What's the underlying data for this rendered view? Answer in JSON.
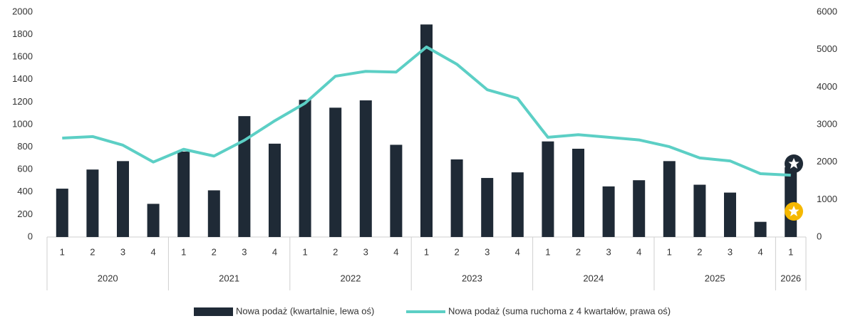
{
  "chart_data": {
    "type": "bar_line",
    "categories": [
      "1",
      "2",
      "3",
      "4",
      "1",
      "2",
      "3",
      "4",
      "1",
      "2",
      "3",
      "4",
      "1",
      "2",
      "3",
      "4",
      "1",
      "2",
      "3",
      "4",
      "1",
      "2",
      "3",
      "4",
      "1"
    ],
    "x_groups": [
      {
        "label": "2020",
        "count": 4
      },
      {
        "label": "2021",
        "count": 4
      },
      {
        "label": "2022",
        "count": 4
      },
      {
        "label": "2023",
        "count": 4
      },
      {
        "label": "2024",
        "count": 4
      },
      {
        "label": "2025",
        "count": 4
      },
      {
        "label": "2026",
        "count": 1
      }
    ],
    "series": [
      {
        "name": "Nowa podaż (kwartalnie, lewa oś)",
        "type": "bar",
        "color": "#1f2a36",
        "values": [
          430,
          600,
          675,
          295,
          760,
          415,
          1075,
          830,
          1220,
          1150,
          1215,
          820,
          1890,
          690,
          525,
          575,
          850,
          785,
          450,
          505,
          675,
          465,
          395,
          135,
          620
        ]
      },
      {
        "name": "Nowa podaż (suma ruchoma z 4 kwartałów, prawa oś)",
        "type": "line",
        "axis": "y2",
        "color": "#5ccfc5",
        "values": [
          2640,
          2680,
          2450,
          2000,
          2340,
          2160,
          2580,
          3100,
          3570,
          4290,
          4420,
          4400,
          5070,
          4610,
          3930,
          3700,
          2660,
          2730,
          2660,
          2590,
          2410,
          2110,
          2030,
          1690,
          1650
        ]
      }
    ],
    "ylim": [
      0,
      2000
    ],
    "yticks": [
      0,
      200,
      400,
      600,
      800,
      1000,
      1200,
      1400,
      1600,
      1800,
      2000
    ],
    "y2lim": [
      0,
      6000
    ],
    "y2ticks": [
      0,
      1000,
      2000,
      3000,
      4000,
      5000,
      6000
    ],
    "grid": false,
    "legend": "bottom"
  }
}
